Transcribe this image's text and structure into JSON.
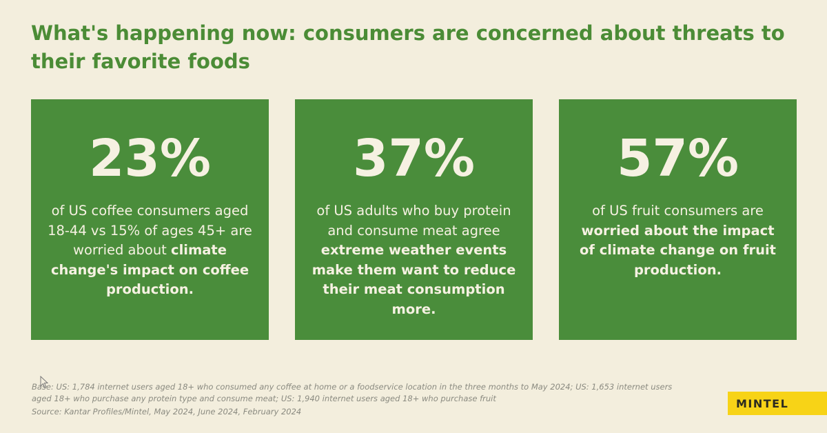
{
  "title": "What's happening now: consumers are concerned about threats to their favorite foods",
  "cards": [
    {
      "percent": "23%",
      "text_plain": "of US coffee consumers aged 18-44 vs 15% of ages 45+ are worried about",
      "text_bold": "climate change's impact on coffee production."
    },
    {
      "percent": "37%",
      "text_plain": "of US adults who buy protein and consume meat agree",
      "text_bold": "extreme weather events make them want to reduce their meat consumption more."
    },
    {
      "percent": "57%",
      "text_plain": "of US fruit consumers are",
      "text_bold": "worried about the impact of climate change on fruit production."
    }
  ],
  "footer": {
    "base": "Base: US: 1,784 internet users aged 18+ who consumed any coffee at home or a foodservice location in the three months to May 2024; US: 1,653 internet users aged 18+ who purchase any protein type and consume meat; US: 1,940 internet users aged 18+ who purchase fruit",
    "source": "Source: Kantar Profiles/Mintel, May 2024, June 2024, February 2024"
  },
  "logo": "MINTEL",
  "colors": {
    "background": "#f3eedd",
    "green": "#4a8d3b",
    "title": "#4b8c36",
    "logo_bg": "#f7d317"
  }
}
